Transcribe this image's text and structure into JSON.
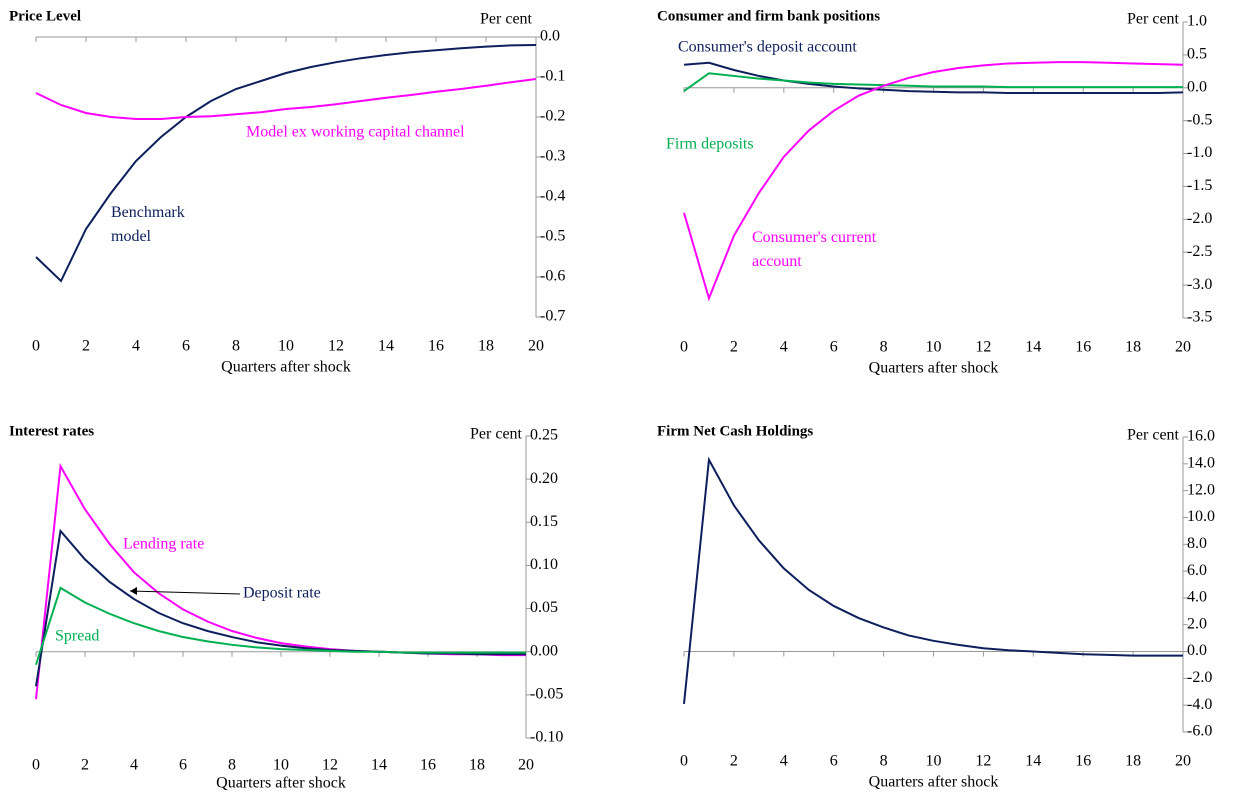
{
  "chart_data": [
    {
      "type": "line",
      "title": "Price Level",
      "y_unit": "Per cent",
      "x_label": "Quarters after shock",
      "x": [
        0,
        1,
        2,
        3,
        4,
        5,
        6,
        7,
        8,
        9,
        10,
        11,
        12,
        13,
        14,
        15,
        16,
        17,
        18,
        19,
        20
      ],
      "xlim": [
        0,
        20
      ],
      "xticks": [
        0,
        2,
        4,
        6,
        8,
        10,
        12,
        14,
        16,
        18,
        20
      ],
      "ylim": [
        -0.7,
        0
      ],
      "yticks": [
        {
          "value": 0,
          "label": "0.0"
        },
        -0.1,
        -0.2,
        -0.3,
        -0.4,
        -0.5,
        -0.6,
        -0.7
      ],
      "y_axis_side": "right",
      "series": [
        {
          "name": "Benchmark model",
          "color": "#0d1f5c",
          "values": [
            -0.55,
            -0.61,
            -0.48,
            -0.39,
            -0.31,
            -0.25,
            -0.2,
            -0.16,
            -0.13,
            -0.11,
            -0.09,
            -0.075,
            -0.063,
            -0.053,
            -0.045,
            -0.038,
            -0.033,
            -0.028,
            -0.024,
            -0.021,
            -0.02
          ]
        },
        {
          "name": "Model ex working capital channel",
          "color": "#ff00ff",
          "values": [
            -0.14,
            -0.17,
            -0.19,
            -0.2,
            -0.205,
            -0.205,
            -0.2,
            -0.198,
            -0.193,
            -0.188,
            -0.18,
            -0.175,
            -0.168,
            -0.16,
            -0.152,
            -0.145,
            -0.137,
            -0.13,
            -0.122,
            -0.113,
            -0.105
          ]
        }
      ]
    },
    {
      "type": "line",
      "title": "Consumer and firm bank positions",
      "y_unit": "Per cent",
      "x_label": "Quarters after shock",
      "x": [
        0,
        1,
        2,
        3,
        4,
        5,
        6,
        7,
        8,
        9,
        10,
        11,
        12,
        13,
        14,
        15,
        16,
        17,
        18,
        19,
        20
      ],
      "xlim": [
        0,
        20
      ],
      "xticks": [
        0,
        2,
        4,
        6,
        8,
        10,
        12,
        14,
        16,
        18,
        20
      ],
      "ylim": [
        -3.5,
        1
      ],
      "yticks": [
        {
          "value": 1,
          "label": "1.0"
        },
        0.5,
        {
          "value": 0,
          "label": "0.0"
        },
        -0.5,
        {
          "value": -1,
          "label": "-1.0"
        },
        -1.5,
        {
          "value": -2,
          "label": "-2.0"
        },
        -2.5,
        {
          "value": -3,
          "label": "-3.0"
        },
        -3.5
      ],
      "y_axis_side": "right",
      "series": [
        {
          "name": "Consumer's deposit account",
          "color": "#0d1f5c",
          "values": [
            0.35,
            0.38,
            0.27,
            0.18,
            0.11,
            0.06,
            0.02,
            -0.01,
            -0.03,
            -0.05,
            -0.06,
            -0.07,
            -0.07,
            -0.08,
            -0.08,
            -0.08,
            -0.08,
            -0.08,
            -0.08,
            -0.08,
            -0.07
          ]
        },
        {
          "name": "Firm deposits",
          "color": "#00b050",
          "values": [
            -0.05,
            0.22,
            0.18,
            0.14,
            0.11,
            0.08,
            0.06,
            0.05,
            0.04,
            0.03,
            0.02,
            0.02,
            0.02,
            0.01,
            0.01,
            0.01,
            0.01,
            0.01,
            0.01,
            0.01,
            0.01
          ]
        },
        {
          "name": "Consumer's current account",
          "color": "#ff00ff",
          "values": [
            -1.9,
            -3.2,
            -2.25,
            -1.6,
            -1.05,
            -0.65,
            -0.35,
            -0.12,
            0.03,
            0.15,
            0.24,
            0.3,
            0.34,
            0.37,
            0.38,
            0.39,
            0.39,
            0.38,
            0.37,
            0.36,
            0.35
          ]
        }
      ]
    },
    {
      "type": "line",
      "title": "Interest rates",
      "y_unit": "Per cent",
      "x_label": "Quarters after shock",
      "x": [
        0,
        1,
        2,
        3,
        4,
        5,
        6,
        7,
        8,
        9,
        10,
        11,
        12,
        13,
        14,
        15,
        16,
        17,
        18,
        19,
        20
      ],
      "xlim": [
        0,
        20
      ],
      "xticks": [
        0,
        2,
        4,
        6,
        8,
        10,
        12,
        14,
        16,
        18,
        20
      ],
      "ylim": [
        -0.1,
        0.25
      ],
      "yticks": [
        0.25,
        {
          "value": 0.2,
          "label": "0.20"
        },
        0.15,
        {
          "value": 0.1,
          "label": "0.10"
        },
        0.05,
        {
          "value": 0,
          "label": "0.00"
        },
        -0.05,
        {
          "value": -0.1,
          "label": "-0.10"
        }
      ],
      "y_axis_side": "right",
      "series": [
        {
          "name": "Lending rate",
          "color": "#ff00ff",
          "values": [
            -0.055,
            0.215,
            0.165,
            0.125,
            0.092,
            0.068,
            0.049,
            0.035,
            0.024,
            0.016,
            0.01,
            0.006,
            0.003,
            0.001,
            0,
            -0.001,
            -0.002,
            -0.003,
            -0.003,
            -0.004,
            -0.004
          ]
        },
        {
          "name": "Deposit rate",
          "color": "#0d1f5c",
          "values": [
            -0.04,
            0.14,
            0.107,
            0.081,
            0.061,
            0.045,
            0.033,
            0.024,
            0.017,
            0.011,
            0.007,
            0.004,
            0.002,
            0.001,
            0,
            -0.001,
            -0.002,
            -0.002,
            -0.003,
            -0.003,
            -0.003
          ]
        },
        {
          "name": "Spread",
          "color": "#00b050",
          "values": [
            -0.015,
            0.074,
            0.057,
            0.044,
            0.033,
            0.024,
            0.017,
            0.012,
            0.008,
            0.005,
            0.003,
            0.002,
            0.001,
            0,
            0,
            -0.001,
            -0.001,
            -0.001,
            -0.001,
            -0.001,
            -0.001
          ]
        }
      ]
    },
    {
      "type": "line",
      "title": "Firm Net Cash Holdings",
      "y_unit": "Per cent",
      "x_label": "Quarters after shock",
      "x": [
        0,
        1,
        2,
        3,
        4,
        5,
        6,
        7,
        8,
        9,
        10,
        11,
        12,
        13,
        14,
        15,
        16,
        17,
        18,
        19,
        20
      ],
      "xlim": [
        0,
        20
      ],
      "xticks": [
        0,
        2,
        4,
        6,
        8,
        10,
        12,
        14,
        16,
        18,
        20
      ],
      "ylim": [
        -6,
        16
      ],
      "yticks": [
        {
          "value": 16,
          "label": "16.0"
        },
        {
          "value": 14,
          "label": "14.0"
        },
        {
          "value": 12,
          "label": "12.0"
        },
        {
          "value": 10,
          "label": "10.0"
        },
        {
          "value": 8,
          "label": "8.0"
        },
        {
          "value": 6,
          "label": "6.0"
        },
        {
          "value": 4,
          "label": "4.0"
        },
        {
          "value": 2,
          "label": "2.0"
        },
        {
          "value": 0,
          "label": "0.0"
        },
        {
          "value": -2,
          "label": "-2.0"
        },
        {
          "value": -4,
          "label": "-4.0"
        },
        {
          "value": -6,
          "label": "-6.0"
        }
      ],
      "y_axis_side": "right",
      "series": [
        {
          "color": "#0d1f5c",
          "values": [
            -3.9,
            14.3,
            10.9,
            8.3,
            6.2,
            4.6,
            3.4,
            2.5,
            1.8,
            1.2,
            0.8,
            0.5,
            0.25,
            0.1,
            0,
            -0.1,
            -0.2,
            -0.25,
            -0.3,
            -0.3,
            -0.3
          ]
        }
      ]
    }
  ]
}
